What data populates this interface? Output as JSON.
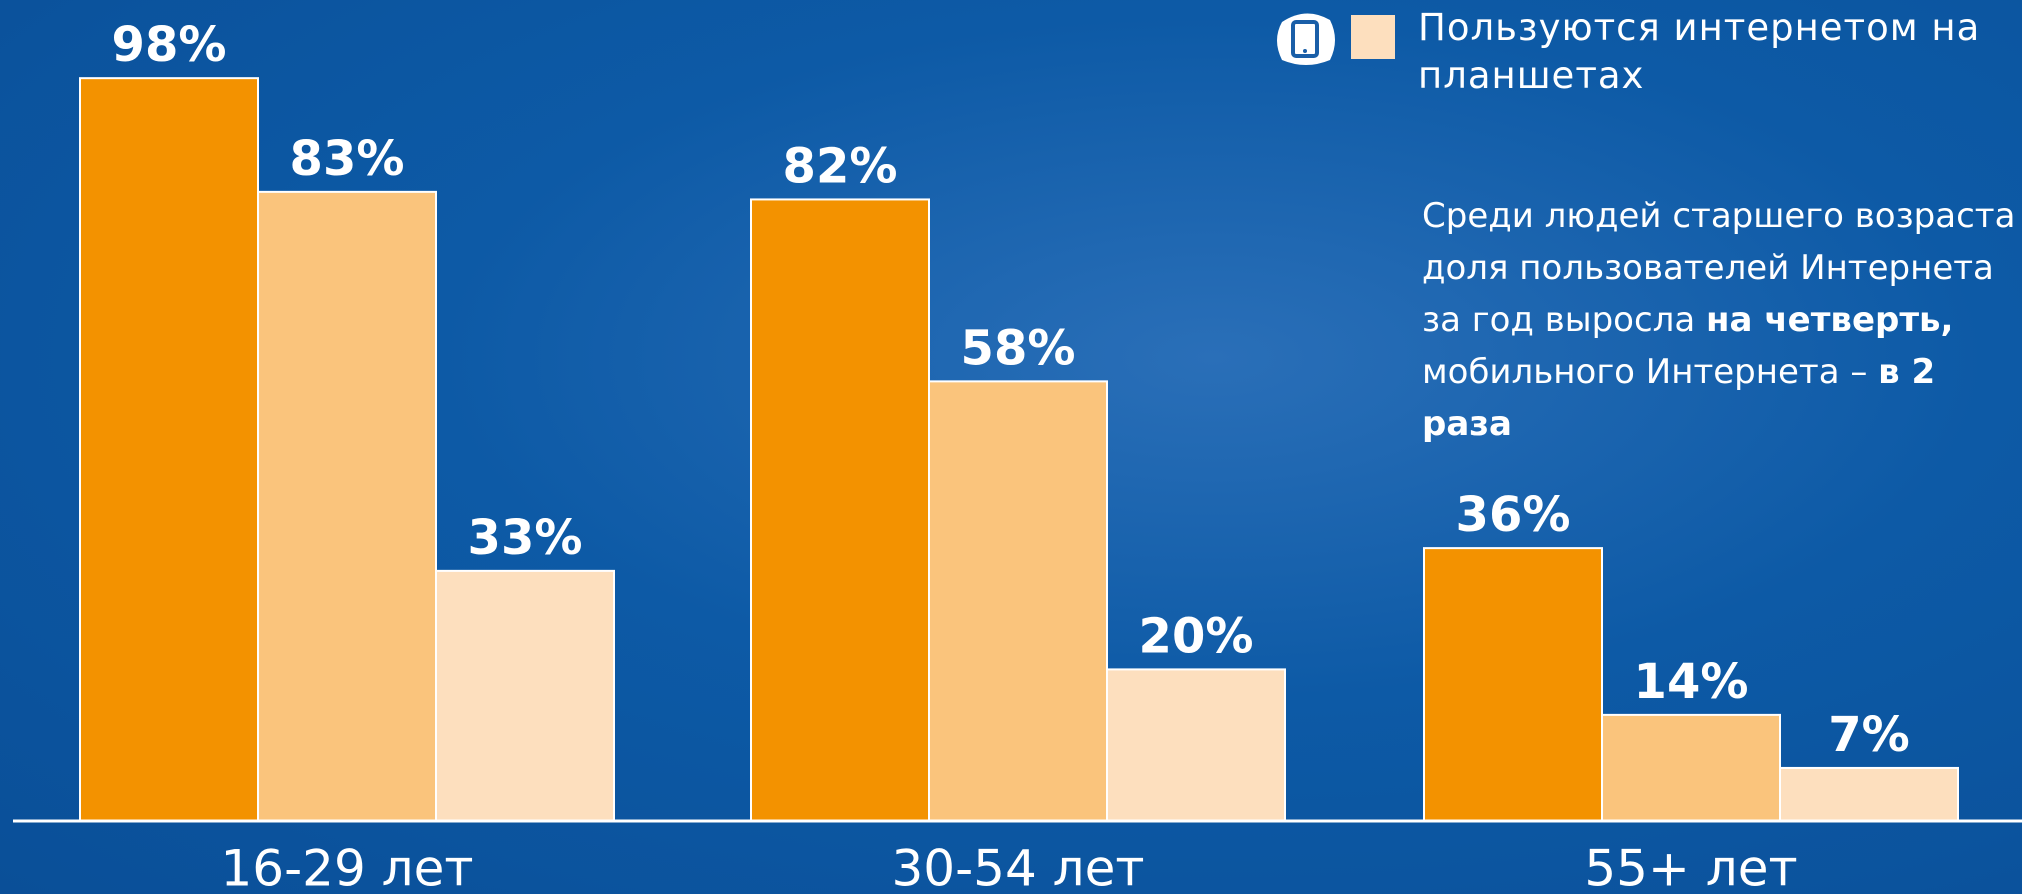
{
  "chart_data": {
    "type": "bar",
    "categories": [
      "16-29 лет",
      "30-54 лет",
      "55+ лет"
    ],
    "series": [
      {
        "color": "#f39200",
        "values": [
          98,
          82,
          36
        ],
        "value_labels": [
          "98%",
          "82%",
          "36%"
        ]
      },
      {
        "color": "#fac47c",
        "values": [
          83,
          58,
          14
        ],
        "value_labels": [
          "83%",
          "58%",
          "14%"
        ]
      },
      {
        "name": "Пользуются интернетом на планшетах",
        "color": "#fddfbe",
        "values": [
          33,
          20,
          7
        ],
        "value_labels": [
          "33%",
          "20%",
          "7%"
        ]
      }
    ],
    "annotation": [
      "Среди людей старшего возраста доля пользователей Интернета за год выросла ",
      "на четверть,",
      " мобильного Интернета – ",
      "в 2 раза"
    ]
  }
}
